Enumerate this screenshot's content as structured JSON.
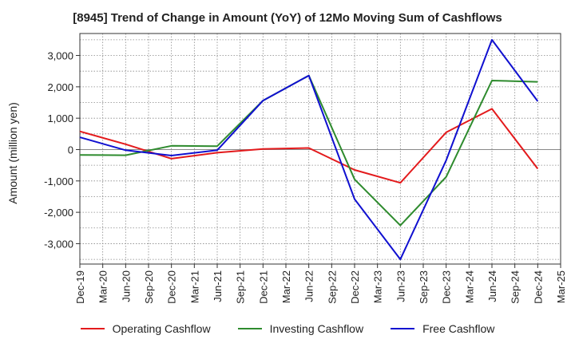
{
  "chart_data": {
    "type": "line",
    "title": "[8945]  Trend of Change in Amount (YoY) of 12Mo Moving Sum of Cashflows",
    "xlabel": "",
    "ylabel": "Amount (million yen)",
    "ylim": [
      -3650,
      3700
    ],
    "yticks": [
      3000,
      2000,
      1000,
      0,
      -1000,
      -2000,
      -3000
    ],
    "ytick_labels": [
      "3,000",
      "2,000",
      "1,000",
      "0",
      "-1,000",
      "-2,000",
      "-3,000"
    ],
    "categories": [
      "Dec-19",
      "Mar-20",
      "Jun-20",
      "Sep-20",
      "Dec-20",
      "Mar-21",
      "Jun-21",
      "Sep-21",
      "Dec-21",
      "Mar-22",
      "Jun-22",
      "Sep-22",
      "Dec-22",
      "Mar-23",
      "Jun-23",
      "Sep-23",
      "Dec-23",
      "Mar-24",
      "Jun-24",
      "Sep-24",
      "Dec-24",
      "Mar-25"
    ],
    "grid": true,
    "legend_position": "bottom",
    "series": [
      {
        "name": "Operating Cashflow",
        "color": "#e31a1c",
        "values": [
          580,
          null,
          170,
          null,
          -290,
          null,
          -100,
          null,
          20,
          null,
          50,
          null,
          -650,
          null,
          -1060,
          null,
          550,
          null,
          1300,
          null,
          -610,
          null
        ]
      },
      {
        "name": "Investing Cashflow",
        "color": "#2e8b2e",
        "values": [
          -170,
          null,
          -180,
          null,
          120,
          null,
          110,
          null,
          1560,
          null,
          2360,
          null,
          -950,
          null,
          -2420,
          null,
          -870,
          null,
          2200,
          null,
          2160,
          null
        ]
      },
      {
        "name": "Free Cashflow",
        "color": "#1010d0",
        "values": [
          390,
          null,
          -20,
          null,
          -190,
          null,
          -20,
          null,
          1560,
          null,
          2360,
          null,
          -1580,
          null,
          -3500,
          null,
          -340,
          null,
          3500,
          null,
          1540,
          null
        ]
      }
    ]
  }
}
